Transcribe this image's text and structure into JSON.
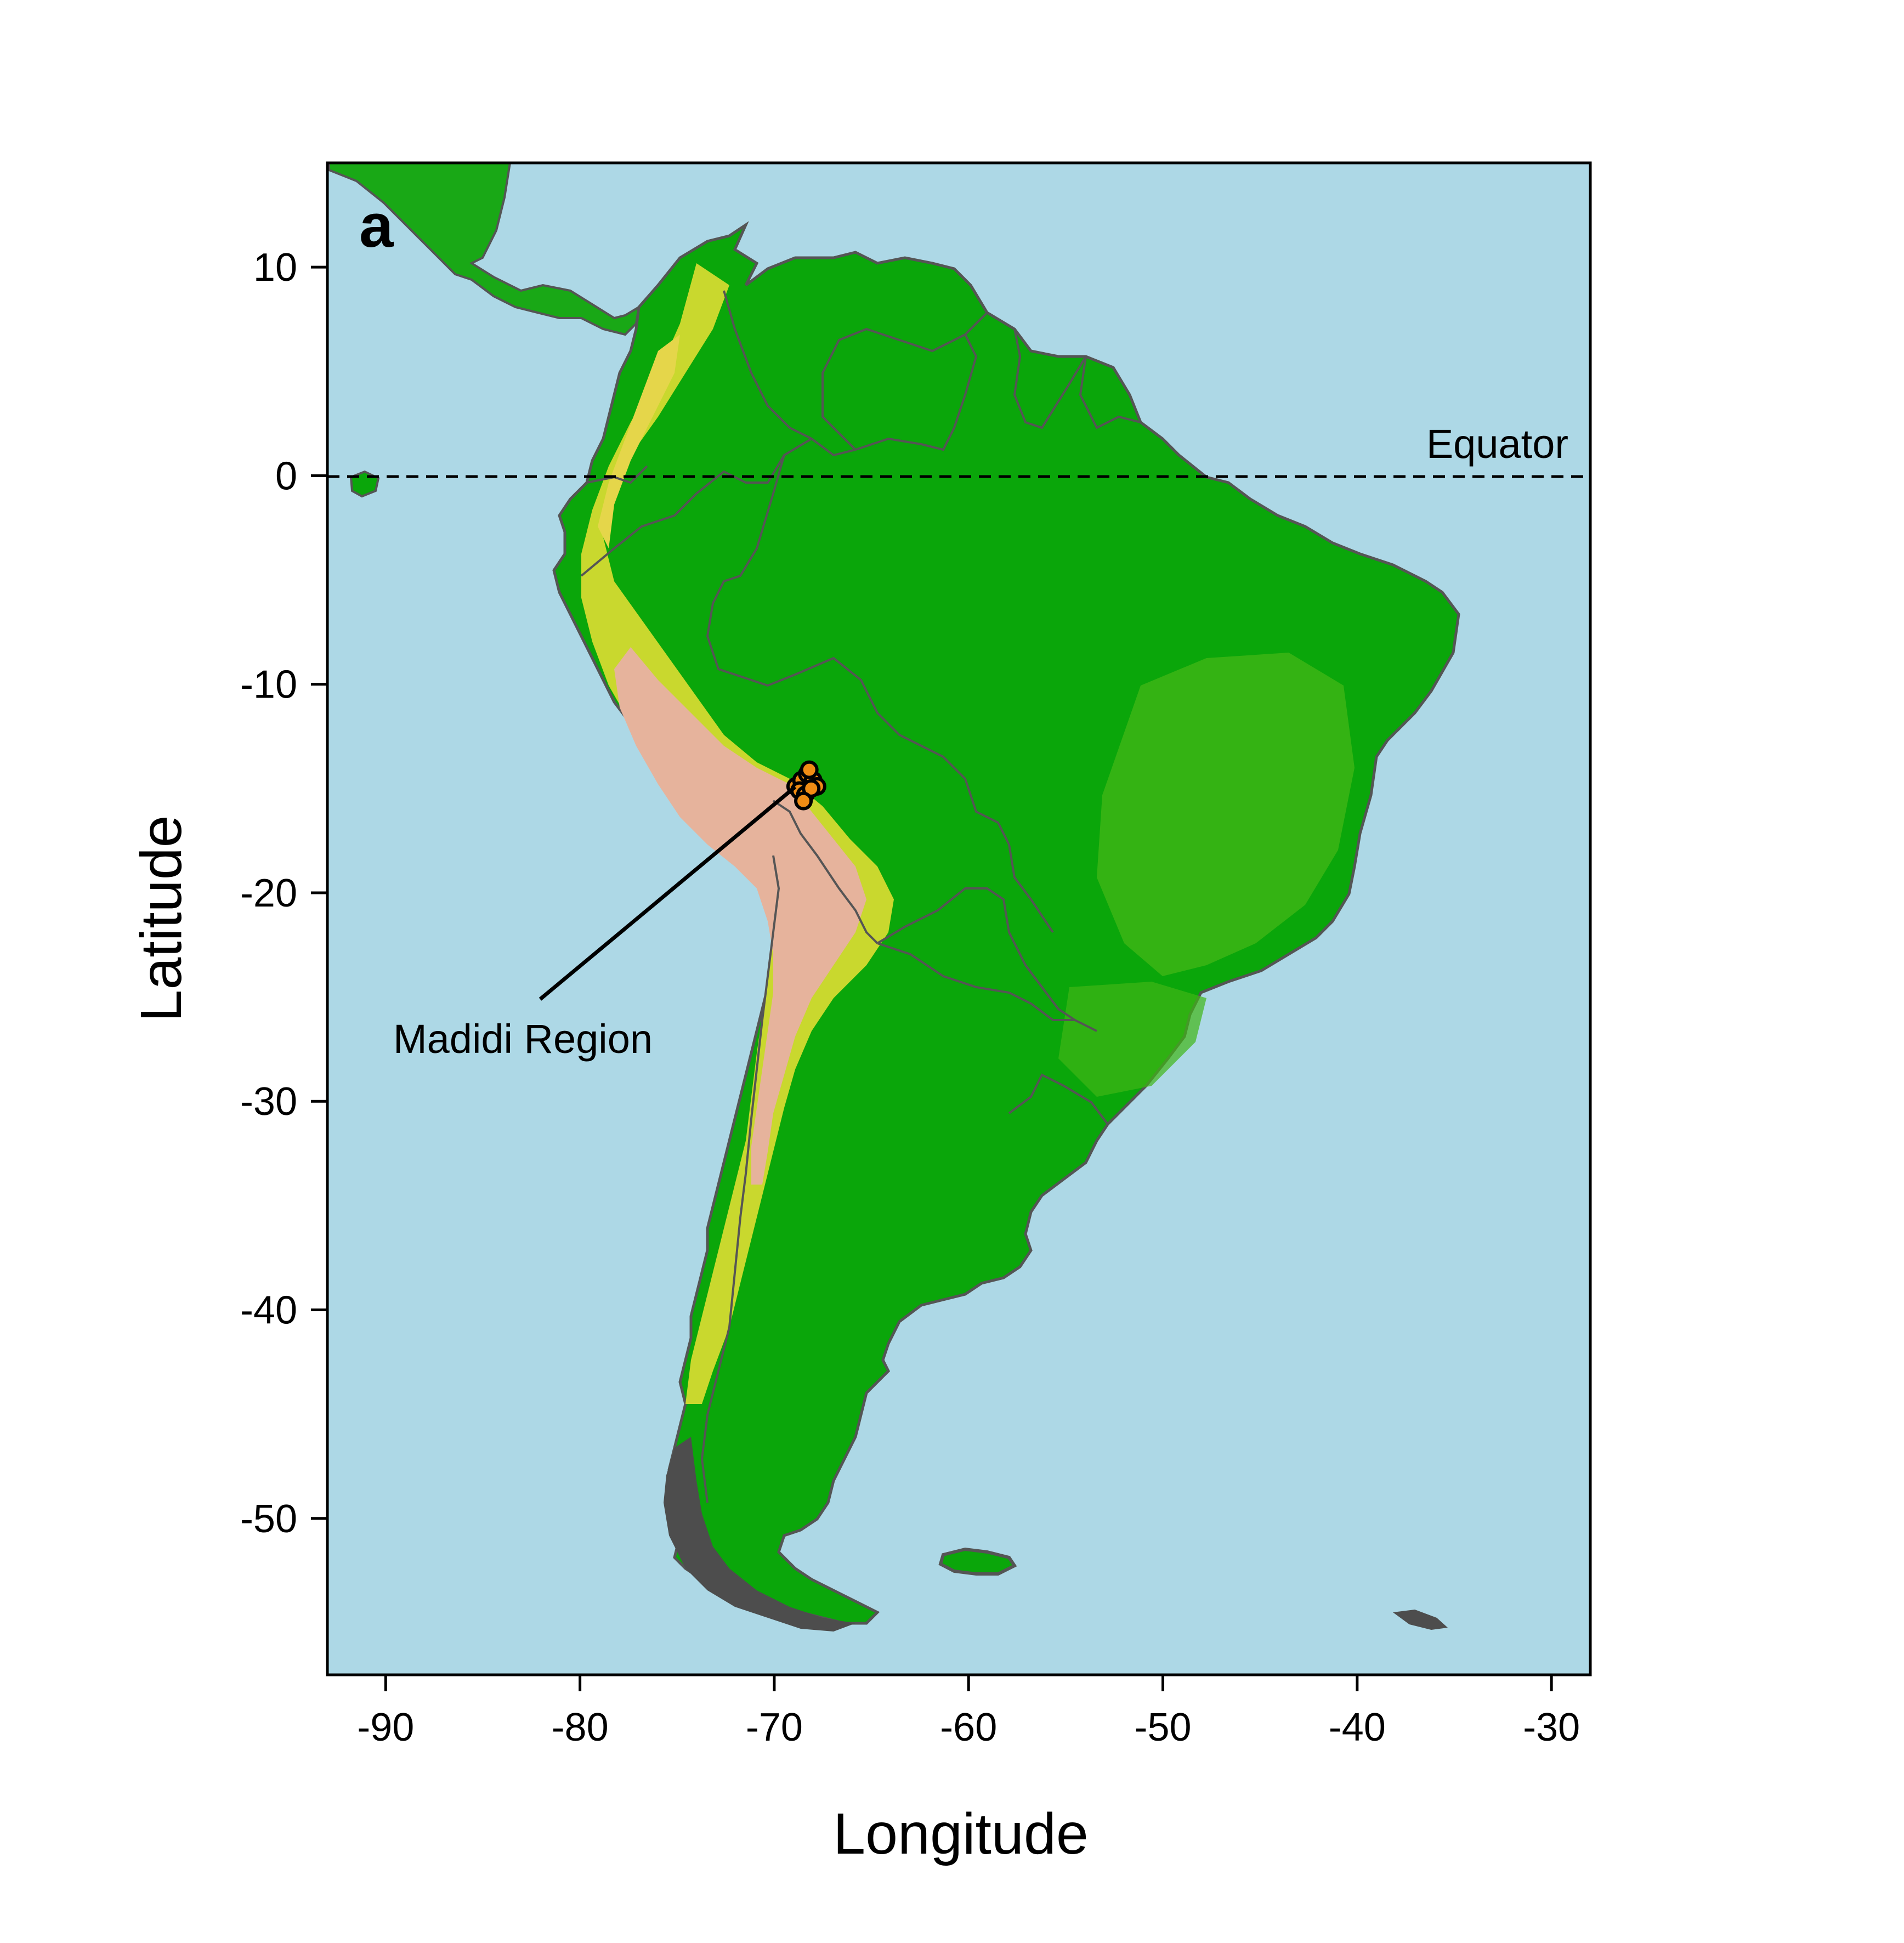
{
  "panel_label": "a",
  "axes": {
    "x_title": "Longitude",
    "y_title": "Latitude",
    "x_ticks": [
      "-90",
      "-80",
      "-70",
      "-60",
      "-50",
      "-40",
      "-30"
    ],
    "y_ticks": [
      "10",
      "0",
      "-10",
      "-20",
      "-30",
      "-40",
      "-50"
    ]
  },
  "annotations": {
    "equator_label": "Equator",
    "region_label": "Madidi Region"
  },
  "colors": {
    "ocean": "#add8e6",
    "lowland": "#0aa30a",
    "midland": "#3fbf10",
    "highland": "#d8dc3a",
    "peak": "#e8b4a0",
    "border": "#555555",
    "marker": "#f08c14"
  },
  "chart_data": {
    "type": "scatter",
    "xlim": [
      -93,
      -28
    ],
    "ylim": [
      -57.5,
      15
    ],
    "x_tick_values": [
      -90,
      -80,
      -70,
      -60,
      -50,
      -40,
      -30
    ],
    "y_tick_values": [
      10,
      0,
      -10,
      -20,
      -30,
      -40,
      -50
    ],
    "equator_lat": 0,
    "series": [
      {
        "name": "Madidi Region",
        "points": [
          [
            -68.9,
            -14.9
          ],
          [
            -68.6,
            -14.6
          ],
          [
            -68.3,
            -14.3
          ],
          [
            -68.0,
            -14.6
          ],
          [
            -67.8,
            -14.9
          ],
          [
            -68.7,
            -15.1
          ],
          [
            -68.4,
            -15.3
          ],
          [
            -68.1,
            -15.0
          ],
          [
            -68.2,
            -14.1
          ],
          [
            -68.5,
            -15.6
          ]
        ]
      }
    ]
  }
}
